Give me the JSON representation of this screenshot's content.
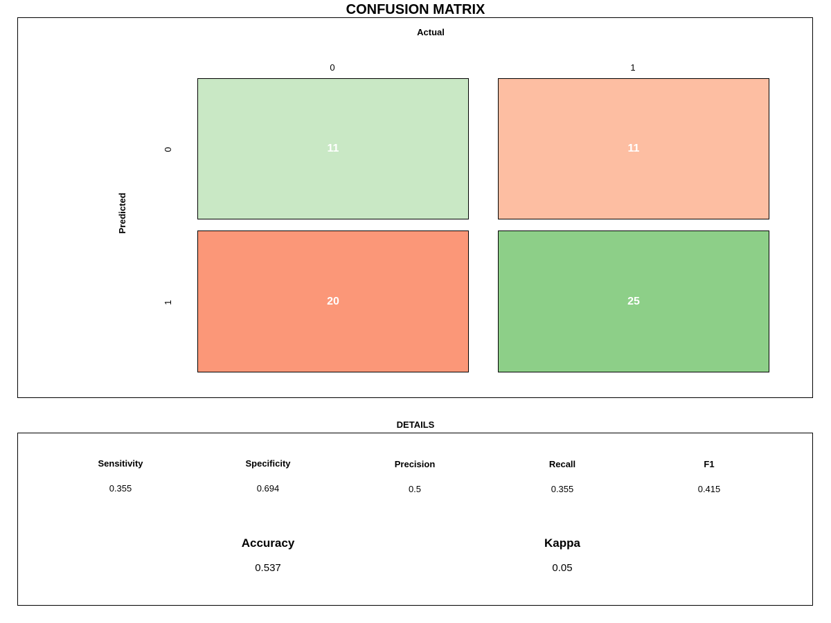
{
  "chart_data": {
    "type": "heatmap",
    "title": "CONFUSION MATRIX",
    "xlabel": "Actual",
    "ylabel": "Predicted",
    "x_categories": [
      "0",
      "1"
    ],
    "y_categories": [
      "0",
      "1"
    ],
    "cells": [
      {
        "predicted": "0",
        "actual": "0",
        "value": 11,
        "color": "#C9E8C5"
      },
      {
        "predicted": "0",
        "actual": "1",
        "value": 11,
        "color": "#FDBEA2"
      },
      {
        "predicted": "1",
        "actual": "0",
        "value": 20,
        "color": "#FB9778"
      },
      {
        "predicted": "1",
        "actual": "1",
        "value": 25,
        "color": "#8DCF88"
      }
    ]
  },
  "details": {
    "title": "DETAILS",
    "metrics": [
      {
        "name": "Sensitivity",
        "value": "0.355"
      },
      {
        "name": "Specificity",
        "value": "0.694"
      },
      {
        "name": "Precision",
        "value": "0.5"
      },
      {
        "name": "Recall",
        "value": "0.355"
      },
      {
        "name": "F1",
        "value": "0.415"
      }
    ],
    "summary": [
      {
        "name": "Accuracy",
        "value": "0.537"
      },
      {
        "name": "Kappa",
        "value": "0.05"
      }
    ]
  }
}
